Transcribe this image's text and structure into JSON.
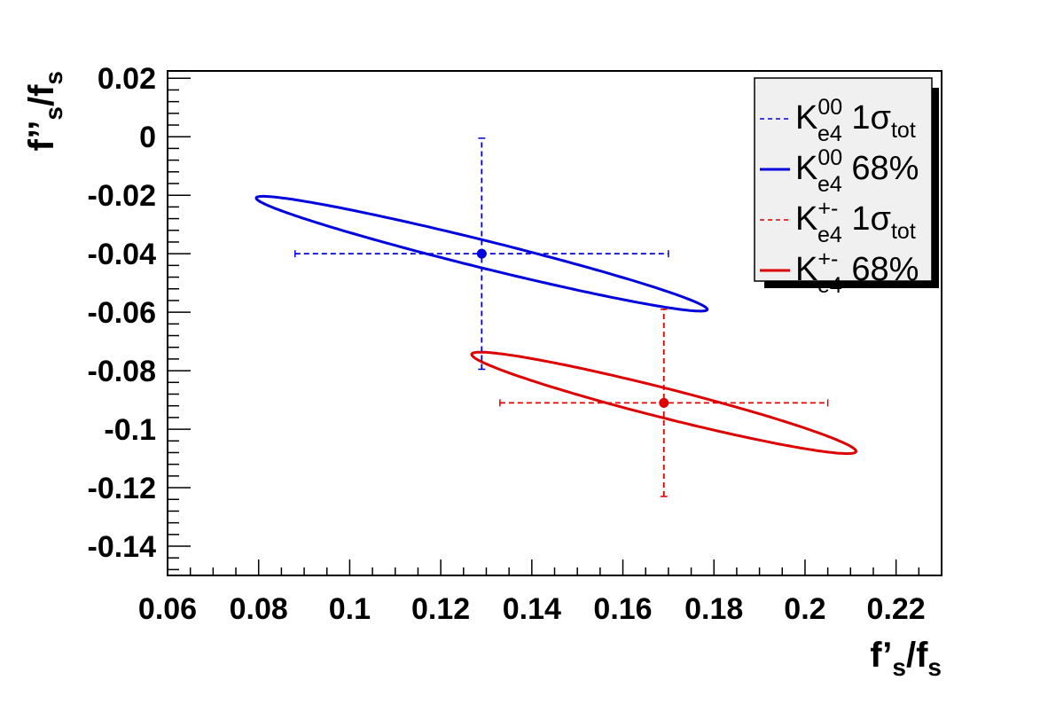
{
  "chart_data": {
    "type": "scatter",
    "xlabel": {
      "main": "f’",
      "sub": "s",
      "rest": "/f",
      "sub2": "s"
    },
    "ylabel": {
      "main": "f’’",
      "sub": "s",
      "rest": "/f",
      "sub2": "s"
    },
    "xlim": [
      0.06,
      0.23
    ],
    "ylim": [
      -0.15,
      0.0225
    ],
    "x_ticks": [
      "0.06",
      "0.08",
      "0.1",
      "0.12",
      "0.14",
      "0.16",
      "0.18",
      "0.2",
      "0.22"
    ],
    "y_ticks": [
      "0.02",
      "0",
      "-0.02",
      "-0.04",
      "-0.06",
      "-0.08",
      "-0.1",
      "-0.12",
      "-0.14"
    ],
    "grid": false,
    "legend_position": "top-right",
    "colors": {
      "blue": "#0000dd",
      "red": "#dd0000",
      "legend_shadow": "#000000",
      "legend_bg": "#f0f0f0"
    },
    "points": [
      {
        "series": "K00",
        "x": 0.129,
        "y": -0.04,
        "xerr_low": 0.088,
        "xerr_high": 0.17,
        "yerr_low": -0.0795,
        "yerr_high": -0.0005,
        "color": "#0000dd"
      },
      {
        "series": "K+-",
        "x": 0.169,
        "y": -0.091,
        "xerr_low": 0.133,
        "xerr_high": 0.205,
        "yerr_low": -0.123,
        "yerr_high": -0.059,
        "color": "#dd0000"
      }
    ],
    "contours": [
      {
        "series": "K00 68%",
        "color": "#0000dd",
        "cx": 0.129,
        "cy": -0.04,
        "a": 0.0655,
        "b": 0.0081,
        "tilt_x_per_y": 1.14
      },
      {
        "series": "K+- 68%",
        "color": "#dd0000",
        "cx": 0.169,
        "cy": -0.091,
        "a": 0.0565,
        "b": 0.0086,
        "tilt_x_per_y": 1.1
      }
    ],
    "legend": [
      {
        "label_main": "K",
        "sup": "00",
        "sub": "e4",
        "label_rest": " 1σ",
        "rest_sub": "tot",
        "style": "dashed",
        "color": "#0000dd"
      },
      {
        "label_main": "K",
        "sup": "00",
        "sub": "e4",
        "label_rest": " 68%",
        "rest_sub": "",
        "style": "solid",
        "color": "#0000dd"
      },
      {
        "label_main": "K",
        "sup": "+-",
        "sub": "e4",
        "label_rest": " 1σ",
        "rest_sub": "tot",
        "style": "dashed",
        "color": "#dd0000"
      },
      {
        "label_main": "K",
        "sup": "+-",
        "sub": "e4",
        "label_rest": " 68%",
        "rest_sub": "",
        "style": "solid",
        "color": "#dd0000"
      }
    ]
  }
}
